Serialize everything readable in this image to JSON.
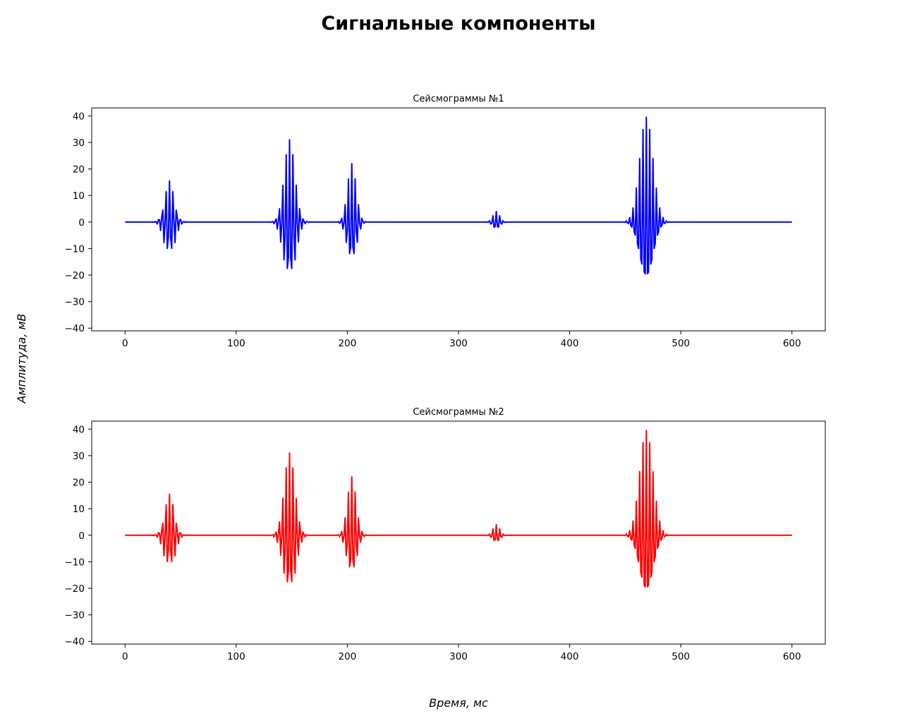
{
  "figure": {
    "title": "Сигнальные компоненты",
    "xlabel": "Время, мс",
    "ylabel": "Амплитуда, мВ"
  },
  "chart_data": [
    {
      "type": "line",
      "title": "Сейсмограммы №1",
      "xlim": [
        -30,
        630
      ],
      "ylim": [
        -41,
        43
      ],
      "xticks": [
        0,
        100,
        200,
        300,
        400,
        500,
        600
      ],
      "xtick_labels": [
        "0",
        "100",
        "200",
        "300",
        "400",
        "500",
        "600"
      ],
      "yticks": [
        -40,
        -30,
        -20,
        -10,
        0,
        10,
        20,
        30,
        40
      ],
      "ytick_labels": [
        "−40",
        "−30",
        "−20",
        "−10",
        "0",
        "10",
        "20",
        "30",
        "40"
      ],
      "grid": false,
      "series": [
        {
          "color": "#0000ff",
          "x_range": [
            0,
            600
          ],
          "wavelets": [
            {
              "t": 40,
              "amp": 15.5,
              "width": 4.5,
              "period": 3.2
            },
            {
              "t": 148,
              "amp": 31,
              "width": 5,
              "period": 3.1
            },
            {
              "t": 204,
              "amp": 22,
              "width": 4,
              "period": 3.1
            },
            {
              "t": 334,
              "amp": 4,
              "width": 3,
              "period": 3.1
            },
            {
              "t": 469,
              "amp": 39.5,
              "width": 6,
              "period": 3.0
            }
          ]
        }
      ]
    },
    {
      "type": "line",
      "title": "Сейсмограммы №2",
      "xlim": [
        -30,
        630
      ],
      "ylim": [
        -41,
        43
      ],
      "xticks": [
        0,
        100,
        200,
        300,
        400,
        500,
        600
      ],
      "xtick_labels": [
        "0",
        "100",
        "200",
        "300",
        "400",
        "500",
        "600"
      ],
      "yticks": [
        -40,
        -30,
        -20,
        -10,
        0,
        10,
        20,
        30,
        40
      ],
      "ytick_labels": [
        "−40",
        "−30",
        "−20",
        "−10",
        "0",
        "10",
        "20",
        "30",
        "40"
      ],
      "grid": false,
      "series": [
        {
          "color": "#ff0000",
          "x_range": [
            0,
            600
          ],
          "wavelets": [
            {
              "t": 40,
              "amp": 15.5,
              "width": 4.5,
              "period": 3.2
            },
            {
              "t": 148,
              "amp": 31,
              "width": 5,
              "period": 3.1
            },
            {
              "t": 204,
              "amp": 22,
              "width": 4,
              "period": 3.1
            },
            {
              "t": 334,
              "amp": 4,
              "width": 3,
              "period": 3.1
            },
            {
              "t": 469,
              "amp": 39.5,
              "width": 6,
              "period": 3.0
            }
          ]
        }
      ]
    }
  ]
}
